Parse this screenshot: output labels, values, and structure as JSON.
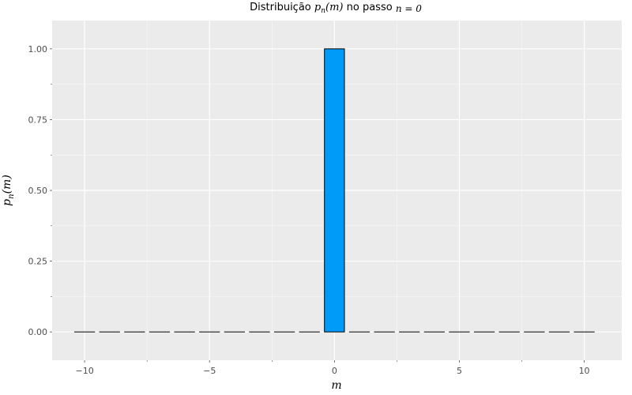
{
  "chart_data": {
    "type": "bar",
    "title": {
      "prefix": "Distribuição ",
      "math1": "p",
      "math1_sub": "n",
      "math1_tail": "(m)",
      "middle": " no passo ",
      "math2": "n = 0"
    },
    "xlabel": "m",
    "ylabel": {
      "base": "p",
      "sub": "n",
      "tail": "(m)"
    },
    "x": [
      -10,
      -9,
      -8,
      -7,
      -6,
      -5,
      -4,
      -3,
      -2,
      -1,
      0,
      1,
      2,
      3,
      4,
      5,
      6,
      7,
      8,
      9,
      10
    ],
    "values": [
      0,
      0,
      0,
      0,
      0,
      0,
      0,
      0,
      0,
      0,
      1,
      0,
      0,
      0,
      0,
      0,
      0,
      0,
      0,
      0,
      0
    ],
    "xlim": [
      -11.3,
      11.5
    ],
    "ylim": [
      -0.1,
      1.1
    ],
    "xticks": [
      -10,
      -5,
      0,
      5,
      10
    ],
    "xtick_labels": [
      "−10",
      "−5",
      "0",
      "5",
      "10"
    ],
    "yticks": [
      0,
      0.25,
      0.5,
      0.75,
      1.0
    ],
    "ytick_labels": [
      "0.00",
      "0.25",
      "0.50",
      "0.75",
      "1.00"
    ],
    "grid": true,
    "colors": {
      "bar_fill": "#009af9",
      "panel_bg": "#ebebeb",
      "grid": "#ffffff"
    }
  }
}
